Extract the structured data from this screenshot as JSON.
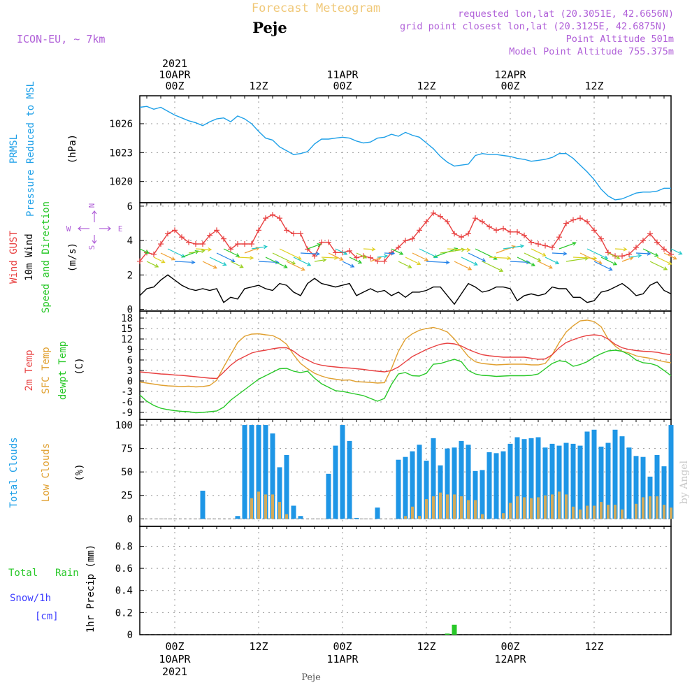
{
  "header": {
    "title": "Forecast Meteogram",
    "location": "Peje",
    "model": "ICON-EU, ~ 7km",
    "requested": "requested lon,lat (20.3051E, 42.6656N)",
    "grid_point": "grid point closest lon,lat (20.3125E, 42.6875N)",
    "point_altitude": "Point Altitude 501m",
    "model_altitude": "Model Point Altitude 755.375m",
    "footer_location": "Peje",
    "watermark": "by Angel"
  },
  "colors": {
    "pressure": "#1ea0e8",
    "gust": "#e84040",
    "wind": "#000000",
    "temp2m": "#e84040",
    "sfc": "#e0a030",
    "dewpt": "#28c828",
    "total_cloud": "#1e96e6",
    "low_cloud": "#d2aa5a",
    "rain": "#28c828",
    "snow": "#3c3cff",
    "purple": "#b060d8",
    "title_tan": "#f0c878",
    "grid": "#999999"
  },
  "time_axis": {
    "top_labels": [
      {
        "hour": 0,
        "lines": [
          "2021",
          "10APR",
          "00Z"
        ]
      },
      {
        "hour": 12,
        "lines": [
          "12Z"
        ]
      },
      {
        "hour": 24,
        "lines": [
          "11APR",
          "00Z"
        ]
      },
      {
        "hour": 36,
        "lines": [
          "12Z"
        ]
      },
      {
        "hour": 48,
        "lines": [
          "12APR",
          "00Z"
        ]
      },
      {
        "hour": 60,
        "lines": [
          "12Z"
        ]
      }
    ],
    "bottom_labels": [
      {
        "hour": 0,
        "lines": [
          "00Z",
          "10APR",
          "2021"
        ]
      },
      {
        "hour": 12,
        "lines": [
          "12Z"
        ]
      },
      {
        "hour": 24,
        "lines": [
          "00Z",
          "11APR"
        ]
      },
      {
        "hour": 36,
        "lines": [
          "12Z"
        ]
      },
      {
        "hour": 48,
        "lines": [
          "00Z",
          "12APR"
        ]
      },
      {
        "hour": 60,
        "lines": [
          "12Z"
        ]
      }
    ],
    "x_range_hours": [
      -5,
      71
    ]
  },
  "panel_labels": {
    "pressure": {
      "lines": [
        "PRMSL",
        "Pressure Reduced to MSL"
      ],
      "unit": "(hPa)"
    },
    "wind": {
      "lines": [
        "Wind GUST",
        "10m Wind",
        "Speed and Direction"
      ],
      "unit": "(m/s)",
      "compass_w": "W",
      "compass_e": "E",
      "compass_n": "N",
      "compass_s": "S"
    },
    "temp": {
      "lines": [
        "2m Temp",
        "SFC Temp",
        "dewpt Temp"
      ],
      "unit": "(C)"
    },
    "cloud": {
      "lines": [
        "Total Clouds",
        "Low Clouds"
      ],
      "unit": "(%)"
    },
    "precip": {
      "lines": [
        "Total",
        "Rain",
        "Snow/1h",
        "[cm]"
      ],
      "unit": "1hr Precip (mm)"
    }
  },
  "chart_data": [
    {
      "type": "line",
      "name": "pressure",
      "ylim": [
        1017.8,
        1028.9
      ],
      "yticks": [
        "1020",
        "1023",
        "1026"
      ],
      "x": [
        -5,
        -4,
        -3,
        -2,
        -1,
        0,
        1,
        2,
        3,
        4,
        5,
        6,
        7,
        8,
        9,
        10,
        11,
        12,
        13,
        14,
        15,
        16,
        17,
        18,
        19,
        20,
        21,
        22,
        23,
        24,
        25,
        26,
        27,
        28,
        29,
        30,
        31,
        32,
        33,
        34,
        35,
        36,
        37,
        38,
        39,
        40,
        41,
        42,
        43,
        44,
        45,
        46,
        47,
        48,
        49,
        50,
        51,
        52,
        53,
        54,
        55,
        56,
        57,
        58,
        59,
        60,
        61,
        62,
        63,
        64,
        65,
        66,
        67,
        68,
        69,
        70,
        71
      ],
      "series": [
        {
          "values": [
            1027.7,
            1027.8,
            1027.5,
            1027.7,
            1027.3,
            1026.9,
            1026.6,
            1026.3,
            1026.1,
            1025.8,
            1026.2,
            1026.5,
            1026.6,
            1026.2,
            1026.8,
            1026.5,
            1026.0,
            1025.2,
            1024.5,
            1024.3,
            1023.6,
            1023.2,
            1022.8,
            1022.9,
            1023.1,
            1023.9,
            1024.4,
            1024.4,
            1024.5,
            1024.6,
            1024.5,
            1024.2,
            1024.0,
            1024.1,
            1024.5,
            1024.6,
            1024.9,
            1024.7,
            1025.1,
            1024.8,
            1024.6,
            1024.0,
            1023.4,
            1022.6,
            1022.0,
            1021.6,
            1021.7,
            1021.8,
            1022.7,
            1022.9,
            1022.8,
            1022.8,
            1022.7,
            1022.6,
            1022.4,
            1022.3,
            1022.1,
            1022.2,
            1022.3,
            1022.5,
            1022.9,
            1022.9,
            1022.4,
            1021.7,
            1021.0,
            1020.2,
            1019.2,
            1018.5,
            1018.1,
            1018.2,
            1018.5,
            1018.8,
            1018.9,
            1018.9,
            1019.0,
            1019.3,
            1019.3
          ]
        }
      ]
    },
    {
      "type": "line",
      "name": "wind",
      "ylim": [
        -0.1,
        6.2
      ],
      "yticks": [
        "0",
        "2",
        "4",
        "6"
      ],
      "x": [
        -5,
        -4,
        -3,
        -2,
        -1,
        0,
        1,
        2,
        3,
        4,
        5,
        6,
        7,
        8,
        9,
        10,
        11,
        12,
        13,
        14,
        15,
        16,
        17,
        18,
        19,
        20,
        21,
        22,
        23,
        24,
        25,
        26,
        27,
        28,
        29,
        30,
        31,
        32,
        33,
        34,
        35,
        36,
        37,
        38,
        39,
        40,
        41,
        42,
        43,
        44,
        45,
        46,
        47,
        48,
        49,
        50,
        51,
        52,
        53,
        54,
        55,
        56,
        57,
        58,
        59,
        60,
        61,
        62,
        63,
        64,
        65,
        66,
        67,
        68,
        69,
        70,
        71
      ],
      "series": [
        {
          "label_ref": "gust",
          "values": [
            2.8,
            3.3,
            3.2,
            3.8,
            4.4,
            4.6,
            4.2,
            3.9,
            3.8,
            3.8,
            4.3,
            4.6,
            4.1,
            3.5,
            3.8,
            3.8,
            3.8,
            4.6,
            5.3,
            5.5,
            5.3,
            4.6,
            4.4,
            4.4,
            3.5,
            3.1,
            3.9,
            3.9,
            3.3,
            3.3,
            3.4,
            3.0,
            3.1,
            3.0,
            2.8,
            2.8,
            3.3,
            3.6,
            4.0,
            4.1,
            4.6,
            5.1,
            5.6,
            5.4,
            5.1,
            4.4,
            4.2,
            4.4,
            5.3,
            5.1,
            4.8,
            4.6,
            4.7,
            4.5,
            4.5,
            4.3,
            3.9,
            3.8,
            3.7,
            3.6,
            4.2,
            5.0,
            5.2,
            5.3,
            5.1,
            4.6,
            4.1,
            3.3,
            3.1,
            3.1,
            3.2,
            3.6,
            4.0,
            4.4,
            3.9,
            3.5,
            3.2
          ]
        },
        {
          "label_ref": "wind",
          "values": [
            0.8,
            1.2,
            1.3,
            1.7,
            2.0,
            1.7,
            1.4,
            1.2,
            1.1,
            1.2,
            1.1,
            1.2,
            0.4,
            0.7,
            0.6,
            1.2,
            1.3,
            1.4,
            1.2,
            1.1,
            1.5,
            1.4,
            1.0,
            0.8,
            1.5,
            1.8,
            1.5,
            1.4,
            1.3,
            1.4,
            1.5,
            0.8,
            1.0,
            1.2,
            1.0,
            1.1,
            0.8,
            1.0,
            0.7,
            1.0,
            1.0,
            1.1,
            1.3,
            1.3,
            0.8,
            0.3,
            0.9,
            1.5,
            1.3,
            1.0,
            1.1,
            1.3,
            1.3,
            1.2,
            0.5,
            0.8,
            0.9,
            0.8,
            0.9,
            1.3,
            1.2,
            1.2,
            0.7,
            0.7,
            0.4,
            0.5,
            1.0,
            1.1,
            1.3,
            1.5,
            1.2,
            0.8,
            0.9,
            1.4,
            1.6,
            1.1,
            0.9
          ]
        }
      ]
    },
    {
      "type": "line",
      "name": "temperature",
      "ylim": [
        -11,
        20
      ],
      "yticks": [
        "-9",
        "-6",
        "-3",
        "0",
        "3",
        "6",
        "9",
        "12",
        "15",
        "18"
      ],
      "x": [
        -5,
        -4,
        -3,
        -2,
        -1,
        0,
        1,
        2,
        3,
        4,
        5,
        6,
        7,
        8,
        9,
        10,
        11,
        12,
        13,
        14,
        15,
        16,
        17,
        18,
        19,
        20,
        21,
        22,
        23,
        24,
        25,
        26,
        27,
        28,
        29,
        30,
        31,
        32,
        33,
        34,
        35,
        36,
        37,
        38,
        39,
        40,
        41,
        42,
        43,
        44,
        45,
        46,
        47,
        48,
        49,
        50,
        51,
        52,
        53,
        54,
        55,
        56,
        57,
        58,
        59,
        60,
        61,
        62,
        63,
        64,
        65,
        66,
        67,
        68,
        69,
        70,
        71
      ],
      "series": [
        {
          "label_ref": "temp2m",
          "values": [
            2.6,
            2.4,
            2.2,
            2.0,
            1.9,
            1.7,
            1.6,
            1.4,
            1.2,
            1.0,
            0.8,
            0.7,
            2.5,
            4.5,
            6.0,
            7.0,
            8.0,
            8.5,
            8.8,
            9.2,
            9.5,
            9.5,
            8.5,
            7.0,
            6.0,
            5.0,
            4.5,
            4.2,
            4.0,
            3.8,
            3.7,
            3.5,
            3.3,
            3.0,
            2.8,
            2.6,
            3.0,
            4.0,
            5.5,
            7.0,
            8.0,
            9.0,
            9.8,
            10.5,
            10.8,
            10.6,
            10.0,
            9.0,
            8.2,
            7.5,
            7.2,
            7.0,
            6.8,
            6.8,
            6.8,
            6.8,
            6.5,
            6.2,
            6.3,
            7.5,
            9.5,
            11.0,
            11.8,
            12.5,
            13.0,
            13.2,
            13.0,
            12.0,
            10.5,
            9.5,
            9.0,
            8.7,
            8.5,
            8.4,
            8.2,
            7.8,
            7.5
          ]
        },
        {
          "label_ref": "sfc",
          "values": [
            -0.3,
            -0.6,
            -0.9,
            -1.2,
            -1.4,
            -1.5,
            -1.6,
            -1.5,
            -1.7,
            -1.6,
            -1.3,
            0.2,
            4.0,
            7.5,
            11.0,
            12.8,
            13.4,
            13.5,
            13.2,
            13.0,
            12.0,
            10.5,
            7.5,
            5.0,
            3.5,
            2.2,
            1.4,
            0.8,
            0.5,
            0.2,
            0.3,
            -0.2,
            -0.3,
            -0.4,
            -0.6,
            -0.5,
            3.5,
            8.5,
            12.0,
            13.5,
            14.5,
            15.0,
            15.3,
            14.8,
            14.0,
            12.0,
            9.5,
            7.0,
            5.5,
            5.0,
            4.8,
            4.6,
            4.7,
            4.8,
            4.8,
            4.8,
            4.6,
            4.6,
            5.0,
            7.5,
            11.0,
            14.0,
            15.8,
            17.2,
            17.4,
            17.0,
            15.5,
            12.0,
            10.0,
            8.5,
            8.0,
            7.2,
            6.8,
            6.5,
            6.0,
            5.5,
            5.2
          ]
        },
        {
          "label_ref": "dewpt",
          "values": [
            -4.0,
            -5.8,
            -7.0,
            -7.8,
            -8.2,
            -8.5,
            -8.7,
            -8.8,
            -9.1,
            -9.0,
            -8.8,
            -8.6,
            -7.5,
            -5.5,
            -4.0,
            -2.5,
            -1.0,
            0.5,
            1.5,
            2.5,
            3.5,
            3.6,
            2.8,
            2.4,
            2.8,
            0.8,
            -0.8,
            -1.8,
            -2.8,
            -3.0,
            -3.4,
            -3.8,
            -4.2,
            -5.0,
            -5.8,
            -5.0,
            -1.0,
            2.0,
            2.4,
            1.5,
            1.4,
            2.2,
            4.8,
            5.0,
            5.6,
            6.2,
            5.5,
            3.0,
            2.0,
            1.6,
            1.5,
            1.3,
            1.4,
            1.5,
            1.5,
            1.5,
            1.6,
            2.0,
            3.5,
            5.0,
            5.8,
            5.5,
            4.2,
            4.7,
            5.5,
            6.8,
            7.8,
            8.6,
            8.8,
            8.5,
            7.5,
            6.0,
            5.2,
            5.0,
            4.4,
            3.0,
            1.5
          ]
        }
      ]
    },
    {
      "type": "bar",
      "name": "clouds",
      "ylim": [
        -8,
        106
      ],
      "yticks": [
        "0",
        "25",
        "50",
        "75",
        "100"
      ],
      "x": [
        -5,
        -4,
        -3,
        -2,
        -1,
        0,
        1,
        2,
        3,
        4,
        5,
        6,
        7,
        8,
        9,
        10,
        11,
        12,
        13,
        14,
        15,
        16,
        17,
        18,
        19,
        20,
        21,
        22,
        23,
        24,
        25,
        26,
        27,
        28,
        29,
        30,
        31,
        32,
        33,
        34,
        35,
        36,
        37,
        38,
        39,
        40,
        41,
        42,
        43,
        44,
        45,
        46,
        47,
        48,
        49,
        50,
        51,
        52,
        53,
        54,
        55,
        56,
        57,
        58,
        59,
        60,
        61,
        62,
        63,
        64,
        65,
        66,
        67,
        68,
        69,
        70,
        71
      ],
      "series": [
        {
          "label_ref": "total",
          "values": [
            0,
            0,
            0,
            0,
            0,
            0,
            0,
            0,
            0,
            30,
            0,
            0,
            0,
            0,
            3,
            100,
            100,
            100,
            100,
            91,
            55,
            68,
            14,
            3,
            0,
            0,
            0,
            48,
            78,
            100,
            83,
            1,
            0,
            0,
            12,
            0,
            0,
            63,
            66,
            72,
            79,
            62,
            86,
            57,
            75,
            76,
            83,
            79,
            51,
            52,
            71,
            70,
            72,
            80,
            87,
            85,
            86,
            87,
            76,
            80,
            78,
            81,
            80,
            78,
            93,
            95,
            77,
            81,
            95,
            88,
            76,
            67,
            66,
            45,
            68,
            56,
            100
          ]
        },
        {
          "label_ref": "low",
          "values": [
            0,
            0,
            0,
            0,
            0,
            0,
            0,
            0,
            0,
            0,
            0,
            0,
            0,
            0,
            0,
            0,
            22,
            29,
            26,
            26,
            18,
            5,
            0,
            0,
            0,
            0,
            0,
            0,
            0,
            0,
            0,
            0,
            0,
            0,
            0,
            0,
            0,
            0,
            3,
            13,
            3,
            21,
            24,
            28,
            26,
            26,
            24,
            20,
            20,
            5,
            0,
            0,
            6,
            17,
            24,
            23,
            22,
            23,
            25,
            26,
            29,
            26,
            13,
            10,
            14,
            14,
            18,
            15,
            15,
            10,
            0,
            16,
            23,
            24,
            24,
            15,
            12
          ]
        }
      ]
    },
    {
      "type": "bar",
      "name": "precipitation",
      "ylim": [
        0,
        0.98
      ],
      "yticks": [
        "0",
        "0.2",
        "0.4",
        "0.6",
        "0.8"
      ],
      "x": [
        39,
        40
      ],
      "series": [
        {
          "label_ref": "rain",
          "values": [
            0.01,
            0.09
          ]
        }
      ]
    }
  ]
}
